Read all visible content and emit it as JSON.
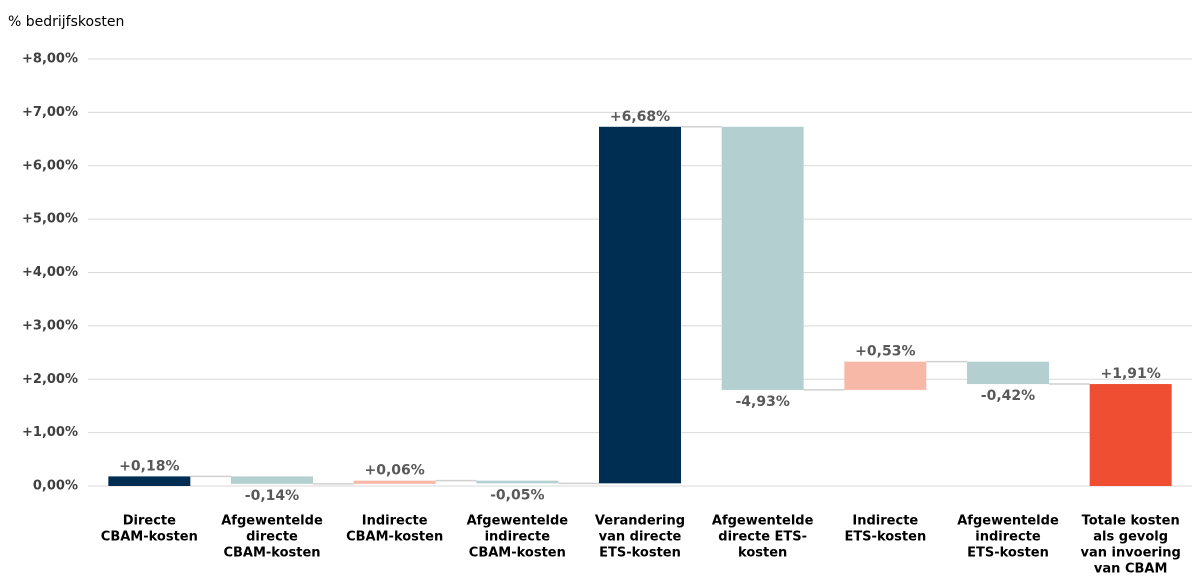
{
  "chart_data": {
    "type": "waterfall",
    "y_axis_label": "% bedrijfskosten",
    "categories": [
      [
        "Directe",
        "CBAM-kosten"
      ],
      [
        "Afgewentelde",
        "directe",
        "CBAM-kosten"
      ],
      [
        "Indirecte",
        "CBAM-kosten"
      ],
      [
        "Afgewentelde",
        "indirecte",
        "CBAM-kosten"
      ],
      [
        "Verandering",
        "van directe",
        "ETS-kosten"
      ],
      [
        "Afgewentelde",
        "directe ETS-",
        "kosten"
      ],
      [
        "Indirecte",
        "ETS-kosten"
      ],
      [
        "Afgewentelde",
        "indirecte",
        "ETS-kosten"
      ],
      [
        "Totale kosten",
        "als gevolg",
        "van invoering",
        "van CBAM"
      ]
    ],
    "values": [
      0.18,
      -0.14,
      0.06,
      -0.05,
      6.68,
      -4.93,
      0.53,
      -0.42,
      1.91
    ],
    "value_labels": [
      "+0,18%",
      "-0,14%",
      "+0,06%",
      "-0,05%",
      "+6,68%",
      "-4,93%",
      "+0,53%",
      "-0,42%",
      "+1,91%"
    ],
    "measure": [
      "relative",
      "relative",
      "relative",
      "relative",
      "relative",
      "relative",
      "relative",
      "relative",
      "total"
    ],
    "colors": [
      "#002d52",
      "#b4cfcf",
      "#f8b8a8",
      "#b4cfcf",
      "#002d52",
      "#b4cfcf",
      "#f8b8a8",
      "#b4cfcf",
      "#f04e32"
    ],
    "ylim": [
      0,
      8
    ],
    "yticks": [
      {
        "value": 0,
        "label": "0,00%"
      },
      {
        "value": 1,
        "label": "+1,00%"
      },
      {
        "value": 2,
        "label": "+2,00%"
      },
      {
        "value": 3,
        "label": "+3,00%"
      },
      {
        "value": 4,
        "label": "+4,00%"
      },
      {
        "value": 5,
        "label": "+5,00%"
      },
      {
        "value": 6,
        "label": "+6,00%"
      },
      {
        "value": 7,
        "label": "+7,00%"
      },
      {
        "value": 8,
        "label": "+8,00%"
      }
    ],
    "grid": true
  }
}
